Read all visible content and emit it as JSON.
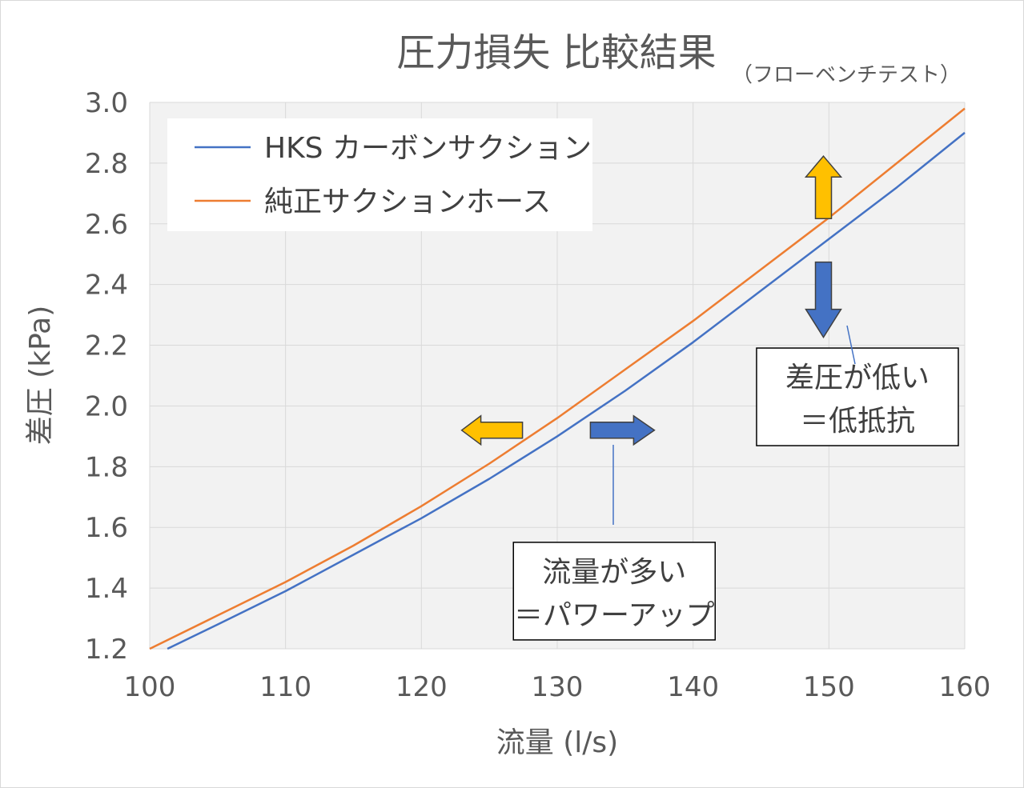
{
  "chart_data": {
    "type": "line",
    "title": "圧力損失 比較結果",
    "subtitle": "（フローベンチテスト）",
    "xlabel": "流量 (l/s)",
    "ylabel": "差圧 (kPa)",
    "xlim": [
      100,
      160
    ],
    "ylim": [
      1.2,
      3.0
    ],
    "xticks": [
      100,
      110,
      120,
      130,
      140,
      150,
      160
    ],
    "yticks": [
      "1.2",
      "1.4",
      "1.6",
      "1.8",
      "2.0",
      "2.2",
      "2.4",
      "2.6",
      "2.8",
      "3.0"
    ],
    "grid": true,
    "legend_position": "top-left",
    "series": [
      {
        "name": "HKS カーボンサクション",
        "color": "#4472c4",
        "x": [
          101.3,
          105,
          110,
          115,
          120,
          125,
          130,
          135,
          140,
          145,
          150,
          155,
          160
        ],
        "y": [
          1.2,
          1.28,
          1.39,
          1.51,
          1.63,
          1.76,
          1.9,
          2.05,
          2.21,
          2.38,
          2.55,
          2.72,
          2.9
        ]
      },
      {
        "name": "純正サクションホース",
        "color": "#ed7d31",
        "x": [
          100,
          105,
          110,
          115,
          120,
          125,
          130,
          135,
          140,
          145,
          150,
          155,
          160
        ],
        "y": [
          1.2,
          1.31,
          1.42,
          1.54,
          1.67,
          1.81,
          1.96,
          2.12,
          2.28,
          2.45,
          2.62,
          2.8,
          2.98
        ]
      }
    ],
    "annotations": [
      {
        "line1": "差圧が低い",
        "line2": "＝低抵抗",
        "x": 152.1,
        "y": 2.03
      },
      {
        "line1": "流量が多い",
        "line2": "＝パワーアップ",
        "x": 134.2,
        "y": 1.39
      }
    ],
    "arrows": [
      {
        "direction": "up",
        "color": "#ffc000",
        "x": 149.6,
        "y": 2.72
      },
      {
        "direction": "down",
        "color": "#4472c4",
        "x": 149.6,
        "y": 2.35
      },
      {
        "direction": "left",
        "color": "#ffc000",
        "x": 125.2,
        "y": 1.92
      },
      {
        "direction": "right",
        "color": "#4472c4",
        "x": 134.8,
        "y": 1.92
      }
    ]
  }
}
